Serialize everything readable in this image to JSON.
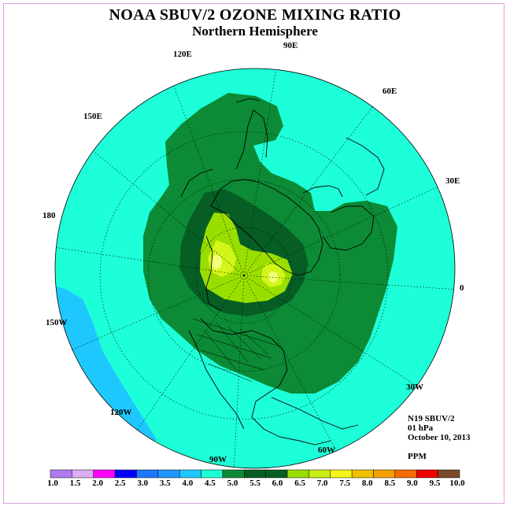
{
  "title": "NOAA SBUV/2 OZONE MIXING RATIO",
  "subtitle": "Northern Hemisphere",
  "longitude_labels": [
    "90E",
    "60E",
    "30E",
    "0",
    "30W",
    "60W",
    "90W",
    "120W",
    "150W",
    "180",
    "150E",
    "120E"
  ],
  "info": {
    "satellite": "N19 SBUV/2",
    "level": "01 hPa",
    "date": "October 10, 2013",
    "units": "PPM"
  },
  "colors": {
    "background_field": "#1dffd8",
    "low_region": "#1ec8ff",
    "green_mid": "#0c8a35",
    "green_dark": "#065e24",
    "lime": "#9ade00",
    "yellow_green": "#d4f51a",
    "pale_yellow": "#f2ff7a"
  },
  "colorbar": {
    "tick_labels": [
      "1.0",
      "1.5",
      "2.0",
      "2.5",
      "3.0",
      "3.5",
      "4.0",
      "4.5",
      "5.0",
      "5.5",
      "6.0",
      "6.5",
      "7.0",
      "7.5",
      "8.0",
      "8.5",
      "9.0",
      "9.5",
      "10.0"
    ],
    "colors": [
      "#b07aee",
      "#dcaef5",
      "#ff00ff",
      "#0000ff",
      "#1e78ff",
      "#1e96ff",
      "#1ec8ff",
      "#1dffd8",
      "#0c8a35",
      "#065e24",
      "#065e24",
      "#9ade00",
      "#c9ee13",
      "#f5f518",
      "#f0c000",
      "#f5a000",
      "#f56c00",
      "#f00000",
      "#7a4a2a"
    ]
  }
}
